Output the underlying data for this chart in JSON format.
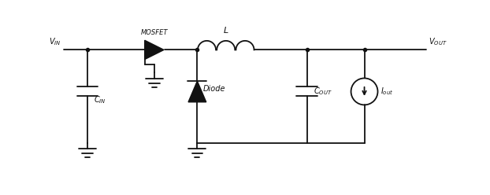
{
  "bg_color": "#ffffff",
  "line_color": "#111111",
  "lw": 1.3,
  "fig_width": 6.22,
  "fig_height": 2.48,
  "dpi": 100,
  "xlim": [
    0,
    10
  ],
  "ylim": [
    0,
    4
  ],
  "top_y": 3.0,
  "bot_y": 1.05,
  "vin_x": 1.2,
  "cin_x": 1.7,
  "mos_x": 3.1,
  "ind_l": 4.0,
  "ind_r": 5.2,
  "diode_x": 4.0,
  "cout_x": 6.3,
  "isrc_x": 7.5,
  "vout_x": 8.8,
  "gnd_cin_x": 1.7,
  "gnd_diode_x": 4.0
}
